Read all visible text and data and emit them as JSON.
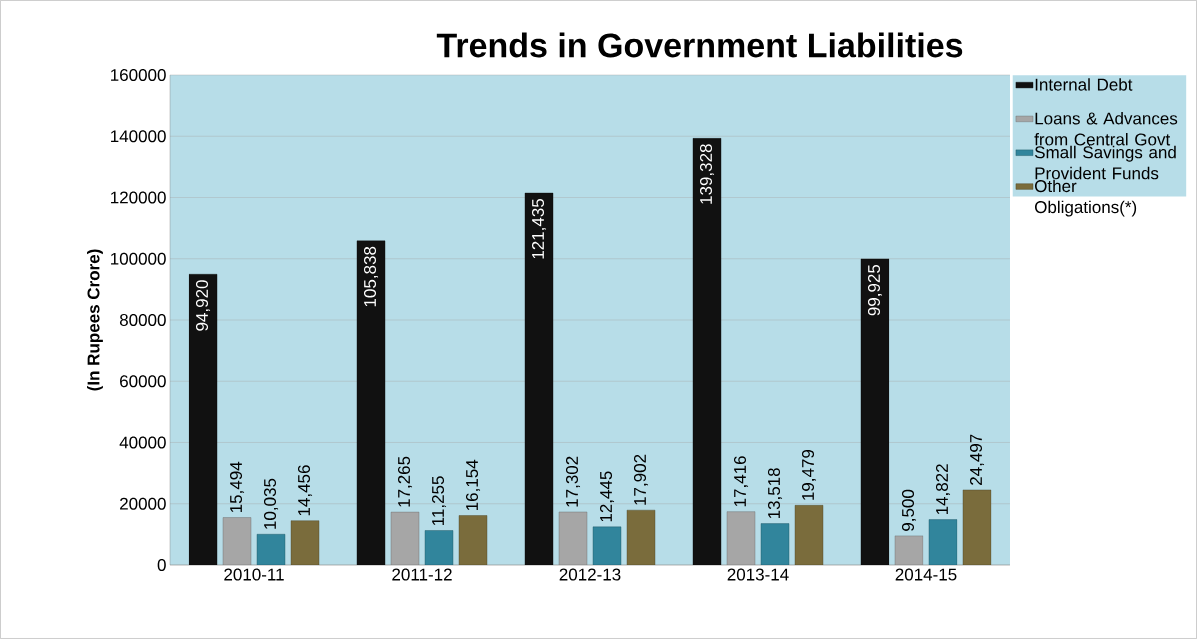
{
  "chart_data": {
    "type": "bar",
    "title": "Trends in Government Liabilities",
    "ylabel": "(In Rupees Crore)",
    "categories": [
      "2010-11",
      "2011-12",
      "2012-13",
      "2013-14",
      "2014-15"
    ],
    "series": [
      {
        "name": "Internal Debt",
        "color": "#111111",
        "values": [
          94920,
          105838,
          121435,
          139328,
          99925
        ],
        "value_labels": [
          "94,920",
          "105,838",
          "121,435",
          "139,328",
          "99,925"
        ]
      },
      {
        "name": "Loans & Advances from Central Govt",
        "color": "#a6a6a6",
        "values": [
          15494,
          17265,
          17302,
          17416,
          9500
        ],
        "value_labels": [
          "15,494",
          "17,265",
          "17,302",
          "17,416",
          "9,500"
        ]
      },
      {
        "name": "Small Savings and Provident Funds",
        "color": "#31859c",
        "values": [
          10035,
          11255,
          12445,
          13518,
          14822
        ],
        "value_labels": [
          "10,035",
          "11,255",
          "12,445",
          "13,518",
          "14,822"
        ]
      },
      {
        "name": "Other Obligations(*)",
        "color": "#7a6c3c",
        "values": [
          14456,
          16154,
          17902,
          19479,
          24497
        ],
        "value_labels": [
          "14,456",
          "16,154",
          "17,902",
          "19,479",
          "24,497"
        ]
      }
    ],
    "ylim": [
      0,
      160000
    ],
    "yticks": [
      0,
      20000,
      40000,
      60000,
      80000,
      100000,
      120000,
      140000,
      160000
    ],
    "grid": "y",
    "legend": "right"
  }
}
